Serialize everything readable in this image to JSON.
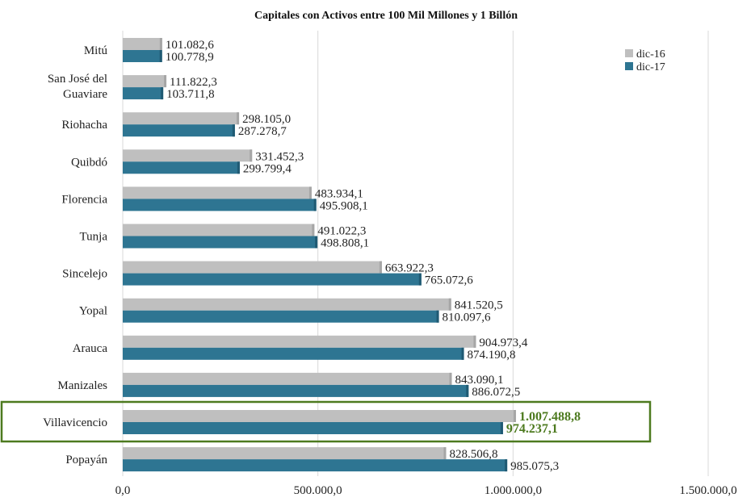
{
  "chart_data": {
    "type": "bar",
    "orientation": "horizontal",
    "title": "Capitales con Activos entre 100 Mil Millones y 1 Billón",
    "categories": [
      [
        "Mitú"
      ],
      [
        "San José del",
        "Guaviare"
      ],
      [
        "Riohacha"
      ],
      [
        "Quibdó"
      ],
      [
        "Florencia"
      ],
      [
        "Tunja"
      ],
      [
        "Sincelejo"
      ],
      [
        "Yopal"
      ],
      [
        "Arauca"
      ],
      [
        "Manizales"
      ],
      [
        "Villavicencio"
      ],
      [
        "Popayán"
      ]
    ],
    "series": [
      {
        "name": "dic-16",
        "color": "#bfbfbf",
        "values": [
          101082.6,
          111822.3,
          298105.0,
          331452.3,
          483934.1,
          491022.3,
          663922.3,
          841520.5,
          904973.4,
          843090.1,
          1007488.8,
          828506.8
        ],
        "labels": [
          "101.082,6",
          "111.822,3",
          "298.105,0",
          "331.452,3",
          "483.934,1",
          "491.022,3",
          "663.922,3",
          "841.520,5",
          "904.973,4",
          "843.090,1",
          "1.007.488,8",
          "828.506,8"
        ]
      },
      {
        "name": "dic-17",
        "color": "#2e7592",
        "values": [
          100778.9,
          103711.8,
          287278.7,
          299799.4,
          495908.1,
          498808.1,
          765072.6,
          810097.6,
          874190.8,
          886072.5,
          974237.1,
          985075.3
        ],
        "labels": [
          "100.778,9",
          "103.711,8",
          "287.278,7",
          "299.799,4",
          "495.908,1",
          "498.808,1",
          "765.072,6",
          "810.097,6",
          "874.190,8",
          "886.072,5",
          "974.237,1",
          "985.075,3"
        ]
      }
    ],
    "xlim": [
      0,
      1500000
    ],
    "xticks": [
      0,
      500000,
      1000000,
      1500000
    ],
    "xtick_labels": [
      "0,0",
      "500.000,0",
      "1.000.000,0",
      "1.500.000,0"
    ],
    "grid": "vertical",
    "legend_position": "top-right",
    "highlight_category": "Villavicencio",
    "highlight_color": "#4d7a1f"
  }
}
